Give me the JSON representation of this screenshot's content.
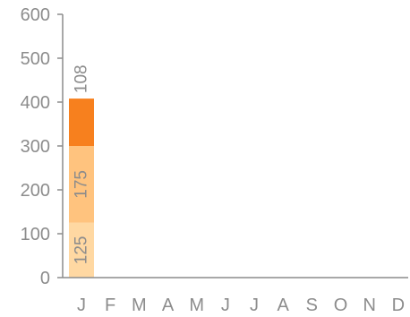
{
  "chart_data": {
    "type": "bar",
    "stacked": true,
    "title": "",
    "xlabel": "",
    "ylabel": "",
    "categories": [
      "J",
      "F",
      "M",
      "A",
      "M",
      "J",
      "J",
      "A",
      "S",
      "O",
      "N",
      "D"
    ],
    "ylim": [
      0,
      600
    ],
    "yticks": [
      "0",
      "100",
      "200",
      "300",
      "400",
      "500",
      "600"
    ],
    "grid": false,
    "legend": "none",
    "series": [
      {
        "color": "#FFD8A2",
        "values": [
          125,
          null,
          null,
          null,
          null,
          null,
          null,
          null,
          null,
          null,
          null,
          null
        ],
        "labels": [
          "125",
          "",
          "",
          "",
          "",
          "",
          "",
          "",
          "",
          "",
          "",
          ""
        ]
      },
      {
        "color": "#FFC37E",
        "values": [
          175,
          null,
          null,
          null,
          null,
          null,
          null,
          null,
          null,
          null,
          null,
          null
        ],
        "labels": [
          "175",
          "",
          "",
          "",
          "",
          "",
          "",
          "",
          "",
          "",
          "",
          ""
        ]
      },
      {
        "color": "#F7801E",
        "values": [
          108,
          null,
          null,
          null,
          null,
          null,
          null,
          null,
          null,
          null,
          null,
          null
        ],
        "labels": [
          "108",
          "",
          "",
          "",
          "",
          "",
          "",
          "",
          "",
          "",
          "",
          ""
        ]
      }
    ],
    "axis_color": "#8c8c8c",
    "text_color": "#8c8c8c"
  }
}
